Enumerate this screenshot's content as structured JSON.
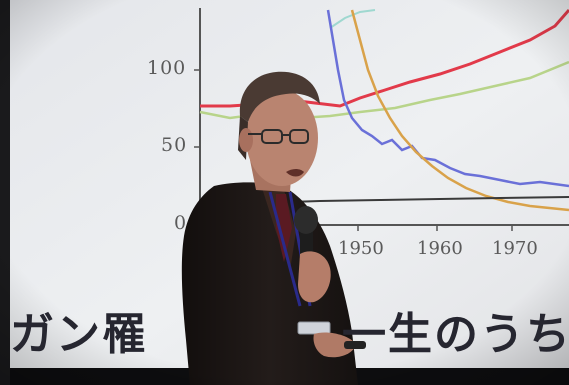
{
  "slide": {
    "y_ticks": [
      "100",
      "50",
      "0"
    ],
    "x_ticks": [
      "1950",
      "1960",
      "1970"
    ],
    "caption_left": "ガン罹",
    "caption_right": "一生のうち"
  },
  "colors": {
    "screen": "#e9eaec",
    "red_series": "#e23a4a",
    "green_series": "#b8d48a",
    "blue_series": "#6a70d8",
    "orange_series": "#d9a24a",
    "suit": "#1b1615"
  }
}
